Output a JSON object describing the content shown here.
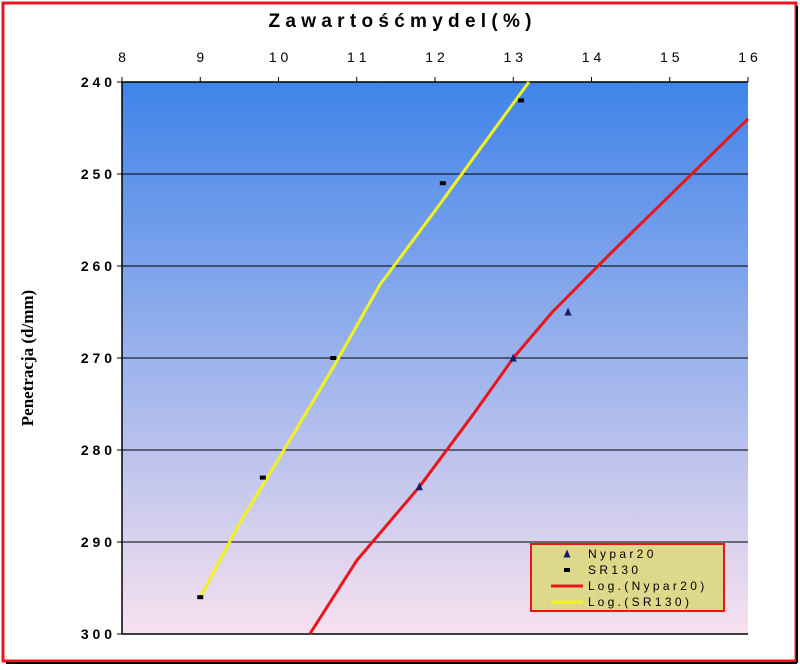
{
  "chart_data": {
    "type": "scatter",
    "title": "Zawartość mydel (%)",
    "title_display": "Z a w a r t o ś ć   m y d e l  ( %  )",
    "xlabel": "",
    "ylabel": "Penetracja (d/mm)",
    "xlim": [
      8,
      16
    ],
    "ylim": [
      240,
      300
    ],
    "y_reversed": true,
    "x_axis_position": "top",
    "grid": true,
    "legend_position": "bottom-right",
    "x_tick_labels": [
      "8",
      "9",
      "10",
      "11",
      "12",
      "13",
      "14",
      "15",
      "16"
    ],
    "x_tick_labels_display": [
      "8",
      "9",
      "1 0",
      "1 1",
      "1 2",
      "1 3",
      "1 4",
      "1 5",
      "1 6"
    ],
    "y_tick_labels": [
      "240",
      "250",
      "260",
      "270",
      "280",
      "290",
      "300"
    ],
    "y_tick_labels_display": [
      "2 4 0",
      "2 5 0",
      "2 6 0",
      "2 7 0",
      "2 8 0",
      "2 9 0",
      "3 0 0"
    ],
    "series": [
      {
        "name": "Nypar20",
        "legend_label": "N y p a r 2 0",
        "marker": "triangle",
        "color": "#1a1a6e",
        "points": [
          [
            11.8,
            284
          ],
          [
            13.0,
            270
          ],
          [
            13.7,
            265
          ]
        ]
      },
      {
        "name": "SR130",
        "legend_label": "S R 1 3 0",
        "marker": "dash",
        "color": "#000000",
        "points": [
          [
            9.0,
            296
          ],
          [
            9.8,
            283
          ],
          [
            10.7,
            270
          ],
          [
            12.1,
            251
          ],
          [
            13.1,
            242
          ]
        ]
      }
    ],
    "trendlines": [
      {
        "name": "Log. (Nypar20)",
        "legend_label": "L o g .  ( N y p a r 2 0 )",
        "color": "#e8161b",
        "points": [
          [
            10.4,
            300
          ],
          [
            11.0,
            292
          ],
          [
            11.8,
            284
          ],
          [
            12.5,
            276
          ],
          [
            13.0,
            270
          ],
          [
            13.5,
            265
          ],
          [
            14.2,
            259
          ],
          [
            14.8,
            254
          ],
          [
            15.4,
            249
          ],
          [
            16.0,
            244
          ]
        ]
      },
      {
        "name": "Log. (SR130)",
        "legend_label": "L o g .  ( S R 1 3 0 )",
        "color": "#f2f21e",
        "points": [
          [
            9.0,
            296
          ],
          [
            9.5,
            288
          ],
          [
            10.0,
            281
          ],
          [
            10.7,
            271
          ],
          [
            11.3,
            262
          ],
          [
            12.0,
            254
          ],
          [
            12.6,
            247
          ],
          [
            13.2,
            240
          ]
        ]
      }
    ]
  },
  "colors": {
    "frame": "#e8161b",
    "plot_top": "#3f84ea",
    "plot_bottom": "#f7e1ef",
    "legend_bg": "#ded98a",
    "legend_border": "#e8161b",
    "gridline": "#000000"
  }
}
